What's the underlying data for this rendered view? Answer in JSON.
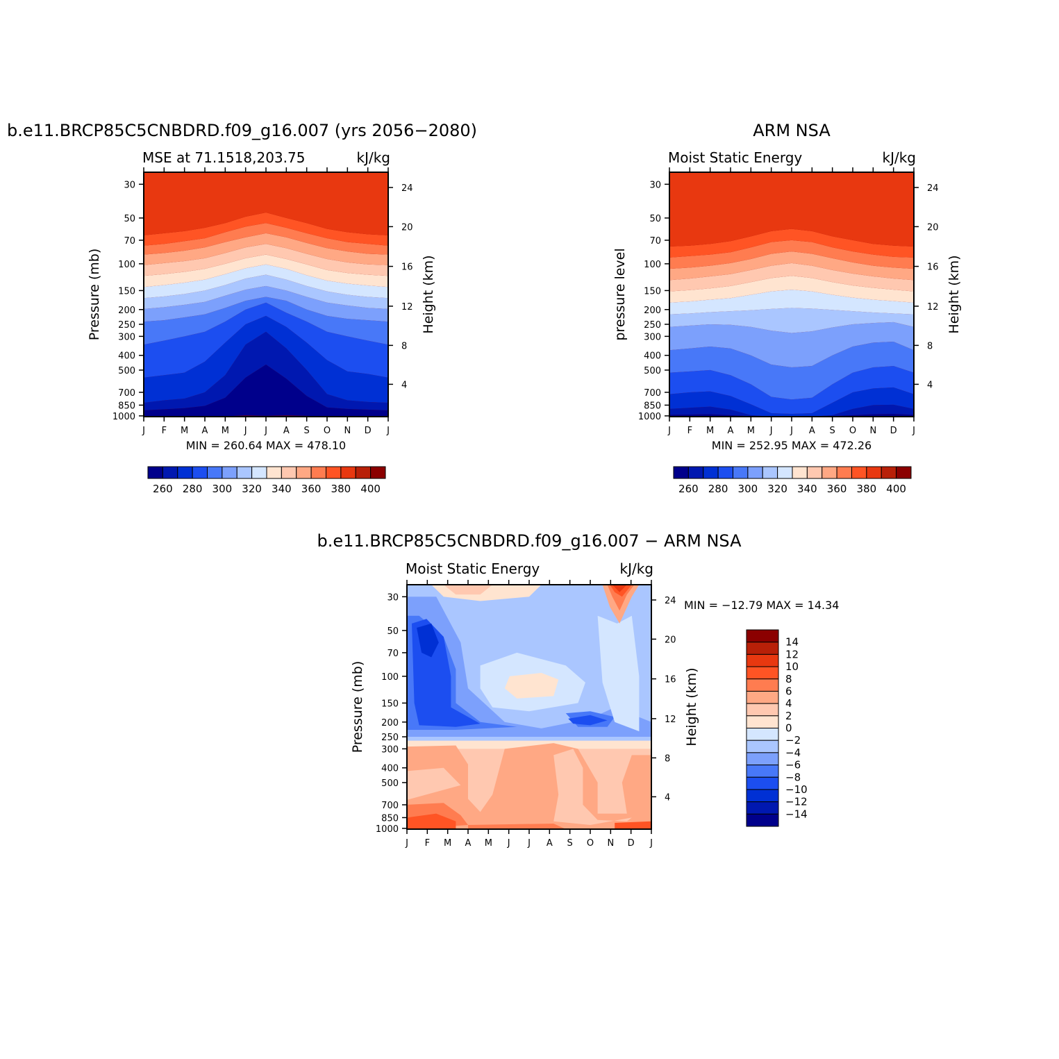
{
  "colors": {
    "mse": [
      "#00008b",
      "#0018b0",
      "#0030d4",
      "#1c4ef0",
      "#4878f8",
      "#7ca0fc",
      "#aac6ff",
      "#d4e6ff",
      "#ffe4d0",
      "#ffc8b0",
      "#ffa884",
      "#ff7c50",
      "#ff5424",
      "#e83810",
      "#b82008",
      "#8b0000"
    ],
    "diff": [
      "#00008b",
      "#0018b0",
      "#0030d4",
      "#1c4ef0",
      "#4878f8",
      "#7ca0fc",
      "#aac6ff",
      "#d4e6ff",
      "#ffe4d0",
      "#ffc8b0",
      "#ffa884",
      "#ff7c50",
      "#ff5424",
      "#e83810",
      "#b82008",
      "#8b0000"
    ]
  },
  "chart_data": [
    {
      "type": "heatmap",
      "title": "b.e11.BRCP85C5CNBDRD.f09_g16.007 (yrs 2056−2080)",
      "subtitle_left": "MSE at 71.1518,203.75",
      "subtitle_right": "kJ/kg",
      "ylabel": "Pressure (mb)",
      "ylabel_right": "Height (km)",
      "x": [
        "J",
        "F",
        "M",
        "A",
        "M",
        "J",
        "J",
        "A",
        "S",
        "O",
        "N",
        "D",
        "J"
      ],
      "y_levels": [
        30,
        50,
        70,
        100,
        150,
        200,
        250,
        300,
        400,
        500,
        700,
        850,
        1000
      ],
      "y_ticks": [
        "30",
        "50",
        "70",
        "100",
        "150",
        "200",
        "250",
        "300",
        "400",
        "500",
        "700",
        "850",
        "1000"
      ],
      "height_ticks": [
        "24",
        "20",
        "16",
        "12",
        "8",
        "4"
      ],
      "min": 260.64,
      "max": 478.1,
      "minmax_text": "MIN = 260.64 MAX = 478.10",
      "colorbar_labels": [
        "260",
        "280",
        "300",
        "320",
        "340",
        "360",
        "380",
        "400"
      ],
      "colorbar_orientation": "horizontal",
      "boundaries_pressure": [
        [
          1012,
          1012,
          1012,
          1012,
          1005,
          995,
          1000,
          995,
          1000,
          1012,
          1012,
          1012,
          1012
        ],
        [
          920,
          905,
          890,
          860,
          760,
          560,
          460,
          570,
          740,
          880,
          900,
          910,
          920
        ],
        [
          820,
          790,
          770,
          700,
          540,
          340,
          280,
          360,
          500,
          720,
          790,
          810,
          820
        ],
        [
          560,
          540,
          520,
          440,
          330,
          250,
          220,
          260,
          330,
          430,
          510,
          530,
          560
        ],
        [
          340,
          320,
          300,
          280,
          240,
          200,
          180,
          210,
          240,
          280,
          300,
          320,
          340
        ],
        [
          240,
          235,
          225,
          215,
          195,
          175,
          165,
          175,
          200,
          220,
          230,
          235,
          240
        ],
        [
          198,
          193,
          186,
          178,
          162,
          148,
          140,
          150,
          165,
          180,
          188,
          195,
          198
        ],
        [
          168,
          164,
          158,
          150,
          138,
          125,
          118,
          127,
          140,
          152,
          160,
          165,
          168
        ],
        [
          142,
          138,
          133,
          127,
          117,
          107,
          101,
          108,
          119,
          129,
          135,
          139,
          142
        ],
        [
          120,
          117,
          113,
          108,
          100,
          92,
          87,
          93,
          101,
          110,
          115,
          118,
          120
        ],
        [
          102,
          99,
          96,
          92,
          85,
          78,
          74,
          79,
          86,
          93,
          98,
          101,
          102
        ],
        [
          87,
          85,
          82,
          78,
          72,
          67,
          63,
          67,
          73,
          79,
          83,
          86,
          87
        ],
        [
          76,
          74,
          71,
          68,
          62,
          57,
          54,
          58,
          63,
          68,
          72,
          74,
          76
        ],
        [
          65,
          63,
          61,
          58,
          54,
          49,
          46,
          50,
          54,
          59,
          62,
          64,
          65
        ]
      ],
      "top_level_colors_index": 15
    },
    {
      "type": "heatmap",
      "title": "ARM NSA",
      "subtitle_left": "Moist Static Energy",
      "subtitle_right": "kJ/kg",
      "ylabel": "pressure level",
      "ylabel_right": "Height (km)",
      "x": [
        "J",
        "F",
        "M",
        "A",
        "M",
        "J",
        "J",
        "A",
        "S",
        "O",
        "N",
        "D",
        "J"
      ],
      "y_levels": [
        30,
        50,
        70,
        100,
        150,
        200,
        250,
        300,
        400,
        500,
        700,
        850,
        1000
      ],
      "y_ticks": [
        "30",
        "50",
        "70",
        "100",
        "150",
        "200",
        "250",
        "300",
        "400",
        "500",
        "700",
        "850",
        "1000"
      ],
      "height_ticks": [
        "24",
        "20",
        "16",
        "12",
        "8",
        "4"
      ],
      "min": 252.95,
      "max": 472.26,
      "minmax_text": "MIN = 252.95 MAX = 472.26",
      "colorbar_labels": [
        "260",
        "280",
        "300",
        "320",
        "340",
        "360",
        "380",
        "400"
      ],
      "colorbar_orientation": "horizontal",
      "boundaries_pressure": [
        [
          1012,
          1012,
          1012,
          1012,
          1012,
          1012,
          1012,
          1012,
          1012,
          1012,
          1012,
          1012,
          1012
        ],
        [
          985,
          980,
          975,
          990,
          1005,
          1012,
          1012,
          1012,
          1005,
          990,
          975,
          970,
          985
        ],
        [
          900,
          885,
          870,
          910,
          990,
          1012,
          1012,
          1012,
          990,
          900,
          850,
          845,
          900
        ],
        [
          720,
          700,
          690,
          740,
          840,
          960,
          970,
          960,
          820,
          700,
          660,
          650,
          720
        ],
        [
          520,
          510,
          500,
          540,
          620,
          750,
          780,
          760,
          620,
          520,
          480,
          470,
          520
        ],
        [
          370,
          360,
          350,
          360,
          400,
          460,
          480,
          470,
          400,
          350,
          330,
          325,
          370
        ],
        [
          260,
          255,
          250,
          252,
          260,
          275,
          285,
          278,
          262,
          250,
          245,
          242,
          260
        ],
        [
          215,
          212,
          208,
          205,
          202,
          198,
          195,
          197,
          201,
          205,
          209,
          212,
          215
        ],
        [
          180,
          177,
          172,
          168,
          160,
          152,
          148,
          152,
          160,
          167,
          172,
          176,
          180
        ],
        [
          152,
          149,
          145,
          140,
          132,
          124,
          120,
          124,
          132,
          139,
          144,
          148,
          152
        ],
        [
          128,
          125,
          121,
          117,
          110,
          103,
          99,
          103,
          110,
          116,
          121,
          125,
          128
        ],
        [
          108,
          106,
          103,
          99,
          93,
          86,
          83,
          86,
          92,
          98,
          103,
          106,
          108
        ],
        [
          91,
          89,
          87,
          84,
          78,
          72,
          70,
          72,
          78,
          83,
          87,
          90,
          91
        ],
        [
          77,
          76,
          74,
          71,
          66,
          61,
          59,
          61,
          66,
          70,
          74,
          76,
          77
        ]
      ],
      "top_level_colors_index": 15
    },
    {
      "type": "heatmap",
      "title": "b.e11.BRCP85C5CNBDRD.f09_g16.007 − ARM NSA",
      "subtitle_left": "Moist Static Energy",
      "subtitle_right": "kJ/kg",
      "ylabel": "Pressure (mb)",
      "ylabel_right": "Height (km)",
      "x": [
        "J",
        "F",
        "M",
        "A",
        "M",
        "J",
        "J",
        "A",
        "S",
        "O",
        "N",
        "D",
        "J"
      ],
      "y_levels": [
        30,
        50,
        70,
        100,
        150,
        200,
        250,
        300,
        400,
        500,
        700,
        850,
        1000
      ],
      "y_ticks": [
        "30",
        "50",
        "70",
        "100",
        "150",
        "200",
        "250",
        "300",
        "400",
        "500",
        "700",
        "850",
        "1000"
      ],
      "height_ticks": [
        "24",
        "20",
        "16",
        "12",
        "8",
        "4"
      ],
      "min": -12.79,
      "max": 14.34,
      "minmax_text": "MIN = −12.79 MAX =  14.34",
      "colorbar_labels": [
        "14",
        "12",
        "10",
        "8",
        "6",
        "4",
        "2",
        "0",
        "−2",
        "−4",
        "−6",
        "−8",
        "−10",
        "−12",
        "−14"
      ],
      "colorbar_orientation": "vertical",
      "bands": [
        {
          "name": "upper",
          "p_top": 25,
          "p_bottom": 270,
          "color_index": 6
        },
        {
          "name": "lower",
          "p_top": 270,
          "p_bottom": 1012,
          "color_index": 9
        }
      ]
    }
  ]
}
